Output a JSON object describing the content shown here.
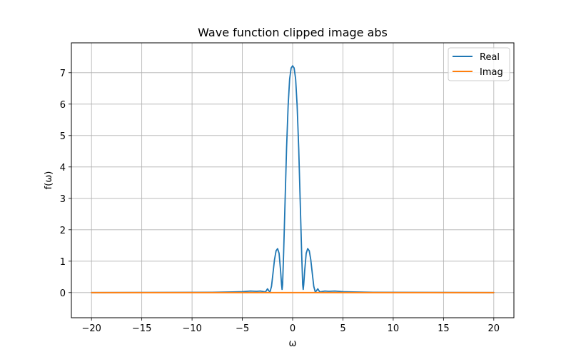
{
  "chart_data": {
    "type": "line",
    "title": "Wave function clipped image abs",
    "xlabel": "ω",
    "ylabel": "f(ω)",
    "xlim": [
      -22,
      22
    ],
    "ylim": [
      -0.8,
      7.95
    ],
    "xticks": [
      -20,
      -15,
      -10,
      -5,
      0,
      5,
      10,
      15,
      20
    ],
    "xtick_labels": [
      "−20",
      "−15",
      "−10",
      "−5",
      "0",
      "5",
      "10",
      "15",
      "20"
    ],
    "yticks": [
      0,
      1,
      2,
      3,
      4,
      5,
      6,
      7
    ],
    "ytick_labels": [
      "0",
      "1",
      "2",
      "3",
      "4",
      "5",
      "6",
      "7"
    ],
    "grid": true,
    "legend_position": "upper right",
    "series": [
      {
        "name": "Real",
        "color": "#1f77b4",
        "x": [
          -20,
          -8,
          -6,
          -5,
          -4.2,
          -3.6,
          -3.2,
          -2.7,
          -2.5,
          -2.35,
          -2.25,
          -2.1,
          -1.95,
          -1.8,
          -1.65,
          -1.5,
          -1.35,
          -1.2,
          -1.1,
          -1.05,
          -1.0,
          -0.9,
          -0.75,
          -0.6,
          -0.45,
          -0.3,
          -0.15,
          0,
          0.15,
          0.3,
          0.45,
          0.6,
          0.75,
          0.9,
          1.0,
          1.05,
          1.1,
          1.2,
          1.35,
          1.5,
          1.65,
          1.8,
          1.95,
          2.1,
          2.25,
          2.35,
          2.5,
          2.7,
          3.2,
          3.6,
          4.2,
          5,
          6,
          8,
          20
        ],
        "y": [
          0,
          0.01,
          0.02,
          0.03,
          0.05,
          0.04,
          0.05,
          0.02,
          0.12,
          0.05,
          0.02,
          0.2,
          0.62,
          1.05,
          1.33,
          1.4,
          1.25,
          0.7,
          0.25,
          0.1,
          0.25,
          1.2,
          2.9,
          4.6,
          5.95,
          6.8,
          7.15,
          7.22,
          7.15,
          6.8,
          5.95,
          4.6,
          2.9,
          1.2,
          0.25,
          0.1,
          0.25,
          0.7,
          1.25,
          1.4,
          1.33,
          1.05,
          0.62,
          0.2,
          0.02,
          0.05,
          0.12,
          0.02,
          0.05,
          0.04,
          0.05,
          0.03,
          0.02,
          0.01,
          0
        ]
      },
      {
        "name": "Imag",
        "color": "#ff7f0e",
        "x": [
          -20,
          20
        ],
        "y": [
          0,
          0
        ]
      }
    ]
  }
}
